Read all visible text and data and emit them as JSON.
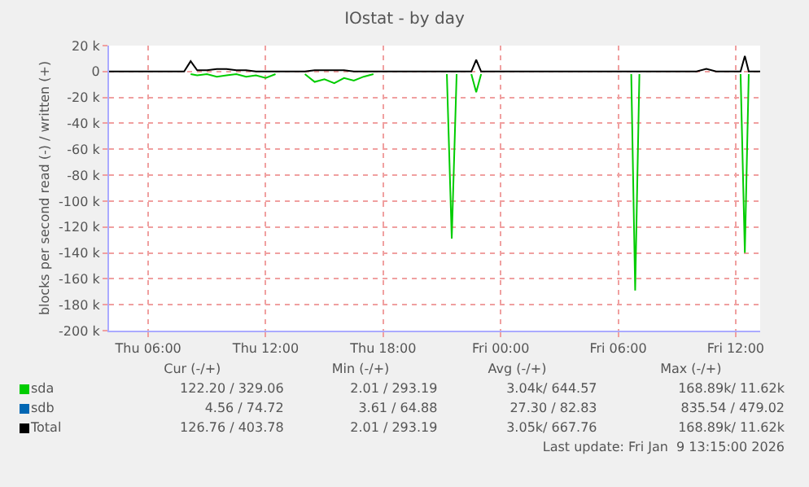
{
  "chart_data": {
    "type": "line",
    "title": "IOstat - by day",
    "ylabel": "blocks per second read (-) / written (+)",
    "x": [
      "2026-01-08T04:00",
      "2026-01-08T05:00",
      "2026-01-08T06:00",
      "2026-01-08T07:00",
      "2026-01-08T07:50",
      "2026-01-08T08:10",
      "2026-01-08T08:30",
      "2026-01-08T09:00",
      "2026-01-08T09:30",
      "2026-01-08T10:00",
      "2026-01-08T10:30",
      "2026-01-08T11:00",
      "2026-01-08T11:30",
      "2026-01-08T12:00",
      "2026-01-08T12:30",
      "2026-01-08T13:00",
      "2026-01-08T14:00",
      "2026-01-08T14:30",
      "2026-01-08T15:00",
      "2026-01-08T15:30",
      "2026-01-08T16:00",
      "2026-01-08T16:30",
      "2026-01-08T17:00",
      "2026-01-08T17:30",
      "2026-01-08T18:00",
      "2026-01-08T19:00",
      "2026-01-08T20:00",
      "2026-01-08T21:00",
      "2026-01-08T21:15",
      "2026-01-08T21:30",
      "2026-01-08T21:45",
      "2026-01-08T22:00",
      "2026-01-08T22:30",
      "2026-01-08T22:45",
      "2026-01-08T23:00",
      "2026-01-09T00:00",
      "2026-01-09T01:00",
      "2026-01-09T02:00",
      "2026-01-09T03:00",
      "2026-01-09T04:00",
      "2026-01-09T05:00",
      "2026-01-09T06:00",
      "2026-01-09T06:40",
      "2026-01-09T06:52",
      "2026-01-09T07:05",
      "2026-01-09T07:30",
      "2026-01-09T08:00",
      "2026-01-09T09:00",
      "2026-01-09T10:00",
      "2026-01-09T10:30",
      "2026-01-09T11:00",
      "2026-01-09T12:00",
      "2026-01-09T12:15",
      "2026-01-09T12:28",
      "2026-01-09T12:40",
      "2026-01-09T13:00",
      "2026-01-09T13:15"
    ],
    "series": [
      {
        "name": "sda",
        "color": "#00cc00",
        "values": [
          null,
          null,
          null,
          null,
          null,
          -2000,
          -3000,
          -2000,
          -4000,
          -3000,
          -2000,
          -4000,
          -3000,
          -5000,
          -2000,
          null,
          -2000,
          -8000,
          -6000,
          -9000,
          -5000,
          -7000,
          -4000,
          -2000,
          null,
          null,
          null,
          null,
          -2000,
          -129000,
          -2000,
          null,
          -2000,
          -16000,
          -2000,
          null,
          null,
          null,
          null,
          null,
          null,
          null,
          -2000,
          -169000,
          -2000,
          null,
          null,
          null,
          null,
          null,
          null,
          null,
          -2000,
          -140000,
          -2000,
          null,
          null
        ]
      },
      {
        "name": "sdb",
        "color": "#0066b3",
        "values": [
          null,
          null,
          null,
          null,
          null,
          null,
          null,
          null,
          null,
          null,
          null,
          null,
          null,
          null,
          null,
          null,
          null,
          null,
          null,
          null,
          null,
          null,
          null,
          null,
          null,
          null,
          null,
          null,
          null,
          null,
          null,
          null,
          null,
          null,
          null,
          null,
          null,
          null,
          null,
          null,
          null,
          null,
          null,
          null,
          null,
          null,
          null,
          null,
          null,
          null,
          null,
          null,
          null,
          null,
          null,
          null,
          null
        ]
      },
      {
        "name": "Total",
        "color": "#000000",
        "values": [
          0,
          0,
          0,
          0,
          0,
          8000,
          1000,
          1000,
          2000,
          2000,
          1000,
          1000,
          0,
          0,
          0,
          0,
          0,
          1000,
          1000,
          1000,
          1000,
          0,
          0,
          0,
          0,
          0,
          0,
          0,
          0,
          0,
          0,
          0,
          0,
          9000,
          0,
          0,
          0,
          0,
          0,
          0,
          0,
          0,
          0,
          0,
          0,
          0,
          0,
          0,
          0,
          2000,
          0,
          0,
          0,
          12000,
          0,
          0,
          0
        ]
      }
    ],
    "xlim": [
      "2026-01-08T04:00",
      "2026-01-09T13:15"
    ],
    "xticks": [
      {
        "value": "2026-01-08T06:00",
        "label": "Thu 06:00"
      },
      {
        "value": "2026-01-08T12:00",
        "label": "Thu 12:00"
      },
      {
        "value": "2026-01-08T18:00",
        "label": "Thu 18:00"
      },
      {
        "value": "2026-01-09T00:00",
        "label": "Fri 00:00"
      },
      {
        "value": "2026-01-09T06:00",
        "label": "Fri 06:00"
      },
      {
        "value": "2026-01-09T12:00",
        "label": "Fri 12:00"
      }
    ],
    "ylim": [
      -200000,
      20000
    ],
    "yticks": [
      {
        "value": 20000,
        "label": "20 k"
      },
      {
        "value": 0,
        "label": "0"
      },
      {
        "value": -20000,
        "label": "-20 k"
      },
      {
        "value": -40000,
        "label": "-40 k"
      },
      {
        "value": -60000,
        "label": "-60 k"
      },
      {
        "value": -80000,
        "label": "-80 k"
      },
      {
        "value": -100000,
        "label": "-100 k"
      },
      {
        "value": -120000,
        "label": "-120 k"
      },
      {
        "value": -140000,
        "label": "-140 k"
      },
      {
        "value": -160000,
        "label": "-160 k"
      },
      {
        "value": -180000,
        "label": "-180 k"
      },
      {
        "value": -200000,
        "label": "-200 k"
      }
    ],
    "grid": true,
    "legend": "bottom left",
    "annotations": [
      "Cur (-/+)",
      "Min (-/+)",
      "Avg (-/+)",
      "Max (-/+)",
      "122.20 / 329.06",
      "2.01 / 293.19",
      "3.04k/ 644.57",
      "168.89k/ 11.62k",
      "4.56 / 74.72",
      "3.61 / 64.88",
      "27.30 / 82.83",
      "835.54 / 479.02",
      "126.76 / 403.78",
      "2.01 / 293.19",
      "3.05k/ 667.76",
      "168.89k/ 11.62k",
      "Last update: Fri Jan  9 13:15:00 2026"
    ]
  }
}
